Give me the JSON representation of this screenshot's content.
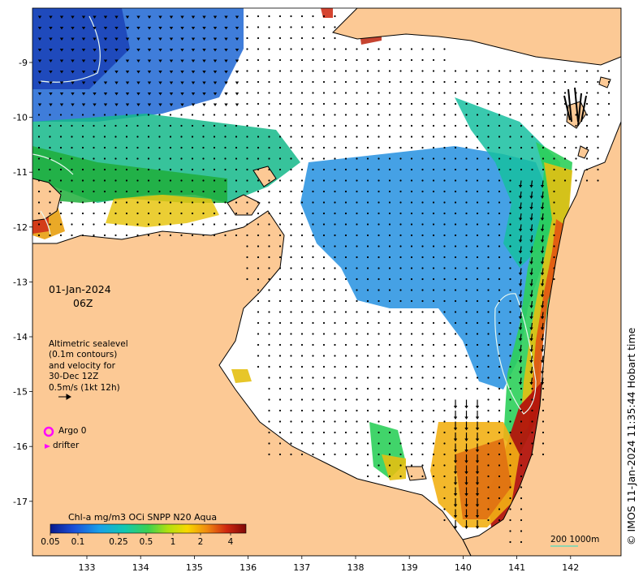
{
  "date": "01-Jan-2024",
  "time": "06Z",
  "altimetry": {
    "lines": [
      "Altimetric sealevel",
      "(0.1m contours)",
      "and velocity for",
      "30-Dec 12Z",
      "0.5m/s (1kt 12h)"
    ]
  },
  "legend": {
    "argo": "Argo 0",
    "drifter": "drifter",
    "argo_color": "#ff00ff",
    "drifter_color": "#ff00ff"
  },
  "colorbar": {
    "title": "Chl-a mg/m3 OCi SNPP N20 Aqua",
    "ticks": [
      "0.05",
      "0.1",
      "0.25",
      "0.5",
      "1",
      "2",
      "4"
    ]
  },
  "credit": "© IMOS 11-Jan-2024 11:35:44 Hobart time",
  "scale_label": "200  1000m",
  "axes": {
    "x_ticks": [
      "133",
      "134",
      "135",
      "136",
      "137",
      "138",
      "139",
      "140",
      "141",
      "142"
    ],
    "y_ticks": [
      "-9",
      "-10",
      "-11",
      "-12",
      "-13",
      "-14",
      "-15",
      "-16",
      "-17"
    ]
  },
  "colors": {
    "land": "#fcc995",
    "ocean_nodata": "#ffffff",
    "contour": "#e8f8f0",
    "low_chl": "#1f5fd0",
    "high_chl": "#9a0b0b"
  }
}
